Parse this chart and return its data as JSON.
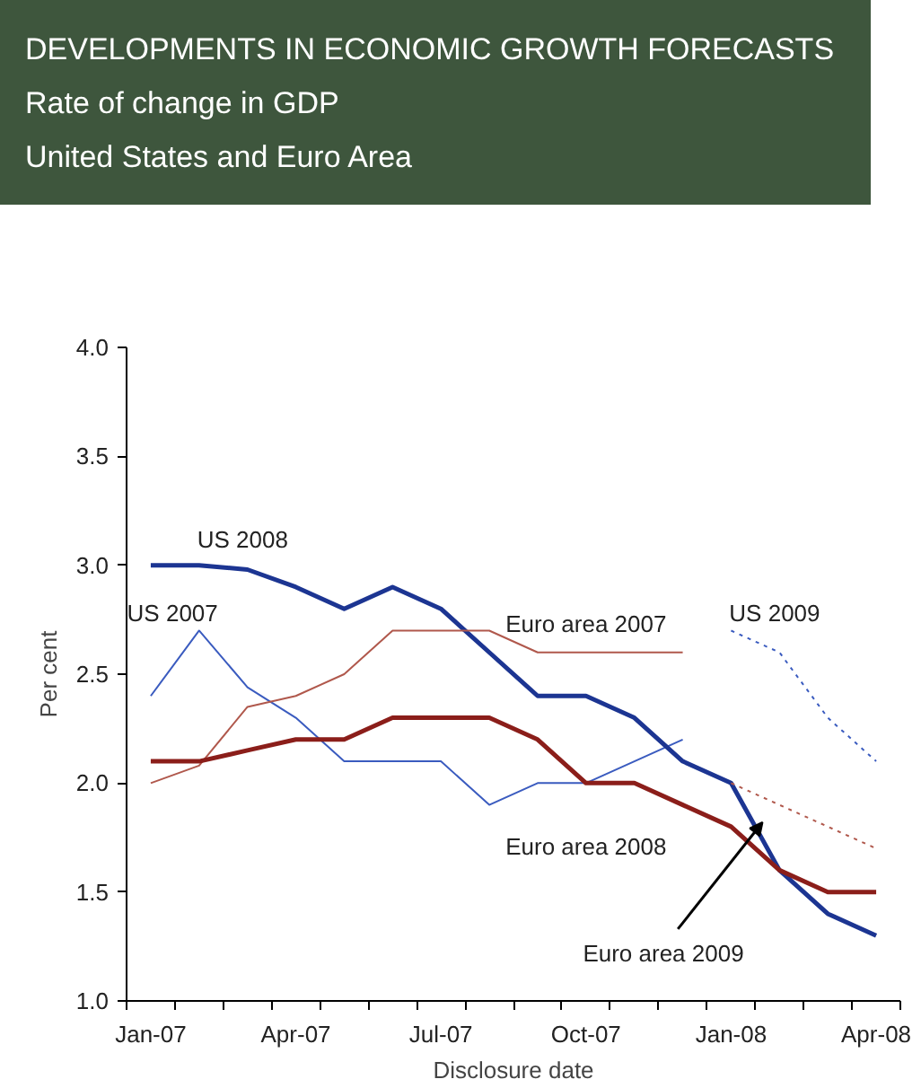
{
  "chart_data": {
    "type": "line",
    "title": "DEVELOPMENTS IN ECONOMIC GROWTH FORECASTS",
    "subtitle": "Rate of change in GDP\nUnited States and Euro Area",
    "xlabel": "Disclosure date",
    "ylabel": "Per cent",
    "categories": [
      "Jan-07",
      null,
      null,
      "Apr-07",
      null,
      null,
      "Jul-07",
      null,
      null,
      "Oct-07",
      null,
      null,
      "Jan-08",
      null,
      null,
      "Apr-08"
    ],
    "ylim": [
      1.0,
      4.0
    ],
    "yticks": [
      {
        "value": 1.0,
        "label": "1.0"
      },
      {
        "value": 1.5,
        "label": "1.5"
      },
      {
        "value": 2.0,
        "label": "2.0"
      },
      {
        "value": 2.5,
        "label": "2.5"
      },
      {
        "value": 3.0,
        "label": "3.0"
      },
      {
        "value": 3.5,
        "label": "3.5"
      },
      {
        "value": 4.0,
        "label": "4.0"
      }
    ],
    "grid": false,
    "marker": "none",
    "series": [
      {
        "name": "US 2007",
        "color": "#3a5bbf",
        "line_style": "solid",
        "values": [
          2.4,
          2.7,
          2.44,
          2.3,
          2.1,
          2.1,
          2.1,
          1.9,
          2.0,
          2.0,
          2.1,
          2.2,
          null,
          null,
          null,
          null
        ]
      },
      {
        "name": "US 2008",
        "color": "#1c3592",
        "line_style": "solid",
        "values": [
          3.0,
          3.0,
          2.98,
          2.9,
          2.8,
          2.9,
          2.8,
          2.6,
          2.4,
          2.4,
          2.3,
          2.1,
          2.0,
          1.6,
          1.4,
          1.3
        ]
      },
      {
        "name": "US 2009",
        "color": "#3a5bbf",
        "line_style": "dotted",
        "values": [
          null,
          null,
          null,
          null,
          null,
          null,
          null,
          null,
          null,
          null,
          null,
          null,
          2.7,
          2.6,
          2.3,
          2.1
        ]
      },
      {
        "name": "Euro area 2007",
        "color": "#b0584c",
        "line_style": "solid",
        "values": [
          2.0,
          2.08,
          2.35,
          2.4,
          2.5,
          2.7,
          2.7,
          2.7,
          2.6,
          2.6,
          2.6,
          2.6,
          null,
          null,
          null,
          null
        ]
      },
      {
        "name": "Euro area 2008",
        "color": "#8b1e1a",
        "line_style": "solid",
        "values": [
          2.1,
          2.1,
          2.15,
          2.2,
          2.2,
          2.3,
          2.3,
          2.3,
          2.2,
          2.0,
          2.0,
          1.9,
          1.8,
          1.6,
          1.5,
          1.5
        ]
      },
      {
        "name": "Euro area 2009",
        "color": "#b0584c",
        "line_style": "dotted",
        "values": [
          null,
          null,
          null,
          null,
          null,
          null,
          null,
          null,
          null,
          null,
          null,
          null,
          2.0,
          1.9,
          1.8,
          1.7
        ]
      }
    ]
  }
}
